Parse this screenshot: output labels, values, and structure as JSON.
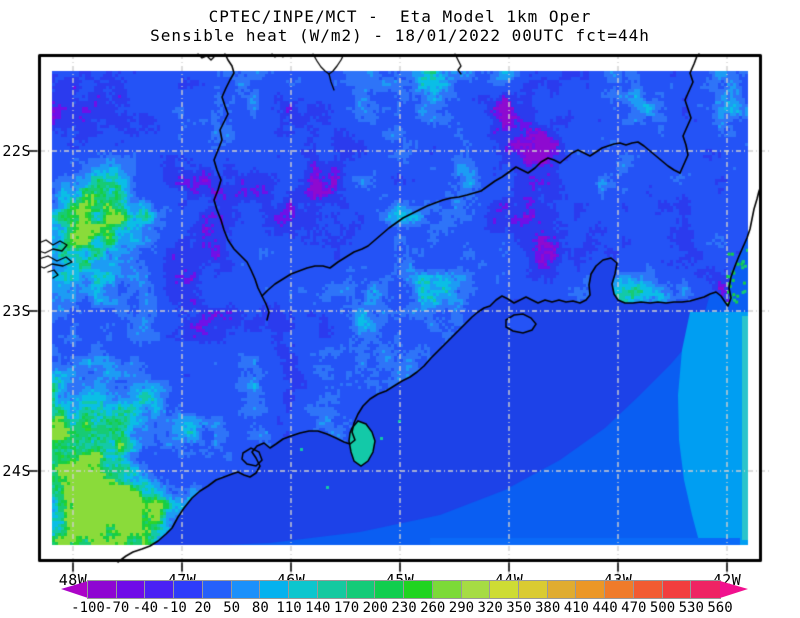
{
  "title": {
    "line1": "CPTEC/INPE/MCT -  Eta Model 1km Oper",
    "line2": "Sensible heat (W/m2) - 18/01/2022 00UTC fct=44h"
  },
  "axes": {
    "lat_labels": [
      "22S",
      "23S",
      "24S"
    ],
    "lon_labels": [
      "48W",
      "47W",
      "46W",
      "45W",
      "44W",
      "43W",
      "42W"
    ]
  },
  "colorbar": {
    "units": "W/m2",
    "tick_labels": [
      "-100",
      "-70",
      "-40",
      "-10",
      "20",
      "50",
      "80",
      "110",
      "140",
      "170",
      "200",
      "230",
      "260",
      "290",
      "320",
      "350",
      "380",
      "410",
      "440",
      "470",
      "500",
      "530",
      "560"
    ],
    "cell_colors": [
      "#8E06D2",
      "#6F0BE8",
      "#4A21F4",
      "#2E3CFA",
      "#2560FA",
      "#1B90FB",
      "#05B2EE",
      "#0CC6CE",
      "#15C9A0",
      "#14CB78",
      "#10CE4E",
      "#20D420",
      "#7CDA38",
      "#A6DC44",
      "#CEDC34",
      "#DACB32",
      "#E0AC30",
      "#EC9726",
      "#F07B2A",
      "#F25B32",
      "#F23E3E",
      "#EF2463"
    ],
    "left_arrow_color": "#AC04C8",
    "right_arrow_color": "#F1108E"
  },
  "map": {
    "grid_color": "#cfcfcf",
    "line_color": "#000000",
    "land_palette": {
      "violet2": "#8E0AD0",
      "violet": "#6F10E8",
      "darkblue": "#2B3BEE",
      "blue": "#2453F6",
      "blue2": "#2E74F8",
      "lightblue": "#1C9CF4",
      "cyan": "#0ABEE6",
      "teal": "#13C9A8",
      "tealgreen": "#17CB74",
      "green": "#16CE46",
      "brightgreen": "#2BD42B",
      "yellowgreen": "#8ADB3A"
    },
    "ocean_shades": {
      "dark": "#1D42E8",
      "mid": "#0A5EF2",
      "light": "#009EF2",
      "edge": "#2AC4CC"
    }
  },
  "chart_data": {
    "type": "heatmap",
    "title": "CPTEC/INPE/MCT - Eta Model 1km Oper / Sensible heat (W/m2) - 18/01/2022 00UTC fct=44h",
    "variable": "Sensible heat",
    "units": "W/m2",
    "x": {
      "label": "longitude",
      "ticks": [
        "48W",
        "47W",
        "46W",
        "45W",
        "44W",
        "43W",
        "42W"
      ]
    },
    "y": {
      "label": "latitude",
      "ticks": [
        "22S",
        "23S",
        "24S"
      ]
    },
    "scale_levels": [
      -100,
      -70,
      -40,
      -10,
      20,
      50,
      80,
      110,
      140,
      170,
      200,
      230,
      260,
      290,
      320,
      350,
      380,
      410,
      440,
      470,
      500,
      530,
      560
    ],
    "scale_colors": [
      "#8E06D2",
      "#6F0BE8",
      "#4A21F4",
      "#2E3CFA",
      "#2560FA",
      "#1B90FB",
      "#05B2EE",
      "#0CC6CE",
      "#15C9A0",
      "#14CB78",
      "#10CE4E",
      "#20D420",
      "#7CDA38",
      "#A6DC44",
      "#CEDC34",
      "#DACB32",
      "#E0AC30",
      "#EC9726",
      "#F07B2A",
      "#F25B32",
      "#F23E3E",
      "#EF2463"
    ],
    "legend_position": "bottom",
    "notes": "Field mostly 20-50 W/m2 (blue) over land with 80-230 W/m2 cyan/green patches in the southwest and along the coast; smooth 20-80 W/m2 bands over the ocean."
  }
}
